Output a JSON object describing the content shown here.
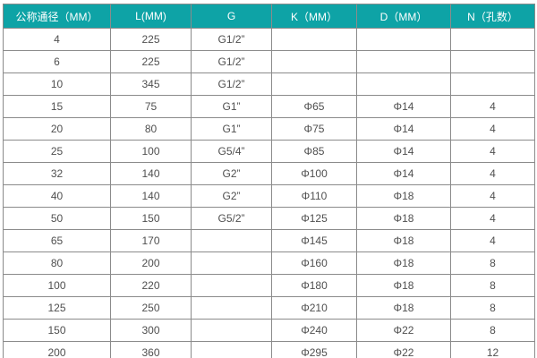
{
  "table": {
    "description": "dimension-spec-table",
    "headers": [
      "公称通径（MM）",
      "L(MM)",
      "G",
      "K（MM）",
      "D（MM）",
      "N（孔数）"
    ],
    "rows": [
      [
        "4",
        "225",
        "G1/2”",
        "",
        "",
        ""
      ],
      [
        "6",
        "225",
        "G1/2”",
        "",
        "",
        ""
      ],
      [
        "10",
        "345",
        "G1/2”",
        "",
        "",
        ""
      ],
      [
        "15",
        "75",
        "G1”",
        "Φ65",
        "Φ14",
        "4"
      ],
      [
        "20",
        "80",
        "G1”",
        "Φ75",
        "Φ14",
        "4"
      ],
      [
        "25",
        "100",
        "G5/4”",
        "Φ85",
        "Φ14",
        "4"
      ],
      [
        "32",
        "140",
        "G2”",
        "Φ100",
        "Φ14",
        "4"
      ],
      [
        "40",
        "140",
        "G2”",
        "Φ110",
        "Φ18",
        "4"
      ],
      [
        "50",
        "150",
        "G5/2”",
        "Φ125",
        "Φ18",
        "4"
      ],
      [
        "65",
        "170",
        "",
        "Φ145",
        "Φ18",
        "4"
      ],
      [
        "80",
        "200",
        "",
        "Φ160",
        "Φ18",
        "8"
      ],
      [
        "100",
        "220",
        "",
        "Φ180",
        "Φ18",
        "8"
      ],
      [
        "125",
        "250",
        "",
        "Φ210",
        "Φ18",
        "8"
      ],
      [
        "150",
        "300",
        "",
        "Φ240",
        "Φ22",
        "8"
      ],
      [
        "200",
        "360",
        "",
        "Φ295",
        "Φ22",
        "12"
      ]
    ],
    "colors": {
      "header_bg": "#0ea3a6",
      "header_text": "#ffffff",
      "border": "#8b8b8b",
      "cell_text": "#4f4f4f",
      "row_bg": "#ffffff"
    }
  }
}
